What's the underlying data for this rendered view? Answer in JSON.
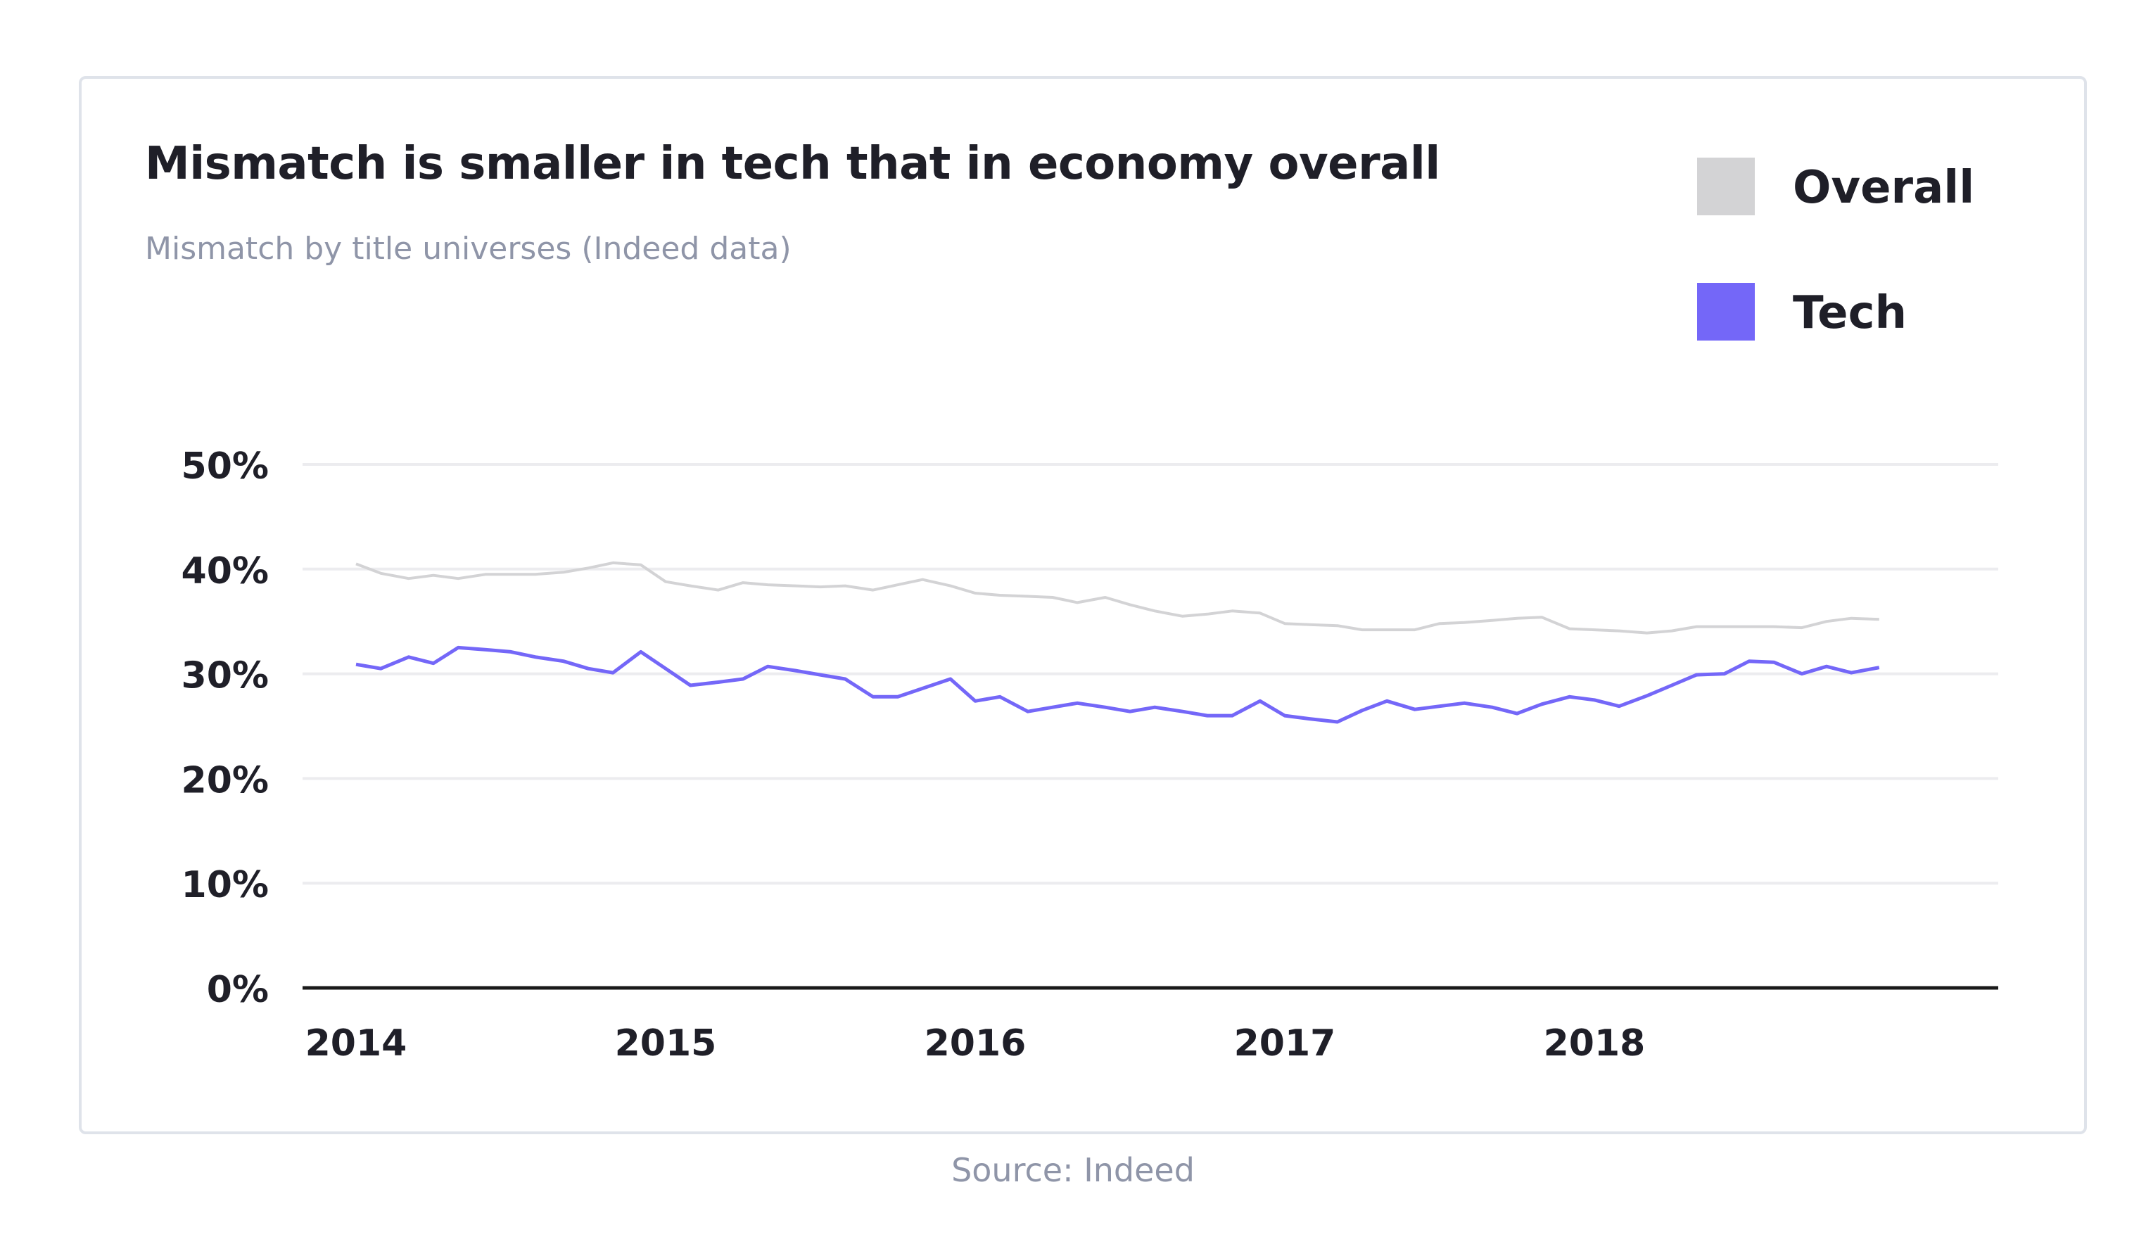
{
  "chart_data": {
    "type": "line",
    "title": "Mismatch is smaller in tech that in economy overall",
    "subtitle": "Mismatch by title universes (Indeed data)",
    "xlabel": "",
    "ylabel": "",
    "ylim": [
      0,
      50
    ],
    "xlim": [
      2014,
      2019.33
    ],
    "y_ticks": [
      "0%",
      "10%",
      "20%",
      "30%",
      "40%",
      "50%"
    ],
    "x_ticks": [
      "2014",
      "2015",
      "2016",
      "2017",
      "2018"
    ],
    "grid": true,
    "legend_position": "top-right",
    "x": [
      2014.0,
      2014.08,
      2014.17,
      2014.25,
      2014.33,
      2014.42,
      2014.5,
      2014.58,
      2014.67,
      2014.75,
      2014.83,
      2014.92,
      2015.0,
      2015.08,
      2015.17,
      2015.25,
      2015.33,
      2015.42,
      2015.5,
      2015.58,
      2015.67,
      2015.75,
      2015.83,
      2015.92,
      2016.0,
      2016.08,
      2016.17,
      2016.25,
      2016.33,
      2016.42,
      2016.5,
      2016.58,
      2016.67,
      2016.75,
      2016.83,
      2016.92,
      2017.0,
      2017.08,
      2017.17,
      2017.25,
      2017.33,
      2017.42,
      2017.5,
      2017.58,
      2017.67,
      2017.75,
      2017.83,
      2017.92,
      2018.0,
      2018.08,
      2018.17,
      2018.25,
      2018.33,
      2018.42,
      2018.5,
      2018.58,
      2018.67,
      2018.75,
      2018.83,
      2018.92
    ],
    "series": [
      {
        "name": "Overall",
        "color": "#d3d3d5",
        "values": [
          40.5,
          39.6,
          39.1,
          39.4,
          39.1,
          39.5,
          39.5,
          39.5,
          39.7,
          40.1,
          40.6,
          40.4,
          38.8,
          38.4,
          38.0,
          38.7,
          38.5,
          38.4,
          38.3,
          38.4,
          38.0,
          38.5,
          39.0,
          38.4,
          37.7,
          37.5,
          37.4,
          37.3,
          36.8,
          37.3,
          36.6,
          36.0,
          35.5,
          35.7,
          36.0,
          35.8,
          34.8,
          34.7,
          34.6,
          34.2,
          34.2,
          34.2,
          34.8,
          34.9,
          35.1,
          35.3,
          35.4,
          34.3,
          34.2,
          34.1,
          33.9,
          34.1,
          34.5,
          34.5,
          34.5,
          34.5,
          34.4,
          35.0,
          35.3,
          35.2
        ]
      },
      {
        "name": "Tech",
        "color": "#7467f8",
        "values": [
          30.9,
          30.5,
          31.6,
          31.0,
          32.5,
          32.3,
          32.1,
          31.6,
          31.2,
          30.5,
          30.1,
          32.1,
          30.5,
          28.9,
          29.2,
          29.5,
          30.7,
          30.3,
          29.9,
          29.5,
          27.8,
          27.8,
          28.6,
          29.5,
          27.4,
          27.8,
          26.4,
          26.8,
          27.2,
          26.8,
          26.4,
          26.8,
          26.4,
          26.0,
          26.0,
          27.4,
          26.0,
          25.7,
          25.4,
          26.5,
          27.4,
          26.6,
          26.9,
          27.2,
          26.8,
          26.2,
          27.1,
          27.8,
          27.5,
          26.9,
          27.9,
          28.9,
          29.9,
          30.0,
          31.2,
          31.1,
          30.0,
          30.7,
          30.1,
          30.6
        ]
      }
    ],
    "source": "Source: Indeed"
  }
}
